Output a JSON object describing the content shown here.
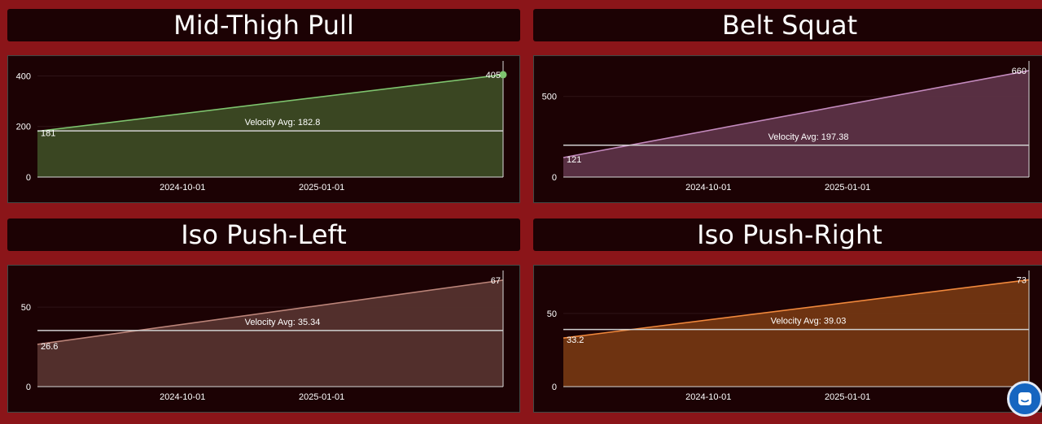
{
  "chart_data": [
    {
      "type": "area",
      "title": "Mid-Thigh Pull",
      "x": [
        "2024-06-27",
        "2025-05-01"
      ],
      "values": [
        181,
        405
      ],
      "point_labels": [
        "181",
        "405"
      ],
      "average": {
        "label": "Velocity Avg: 182.8",
        "value": 182.8
      },
      "xticks": [
        "2024-10-01",
        "2025-01-01"
      ],
      "yticks": [
        0,
        200,
        400
      ],
      "ylim": [
        0,
        440
      ],
      "colors": {
        "line": "#7ec46e",
        "fill": "#3c4a24"
      },
      "end_marker": true
    },
    {
      "type": "area",
      "title": "Belt Squat",
      "x": [
        "2024-06-27",
        "2025-05-01"
      ],
      "values": [
        121,
        660
      ],
      "point_labels": [
        "121",
        "660"
      ],
      "average": {
        "label": "Velocity Avg: 197.38",
        "value": 197.38
      },
      "xticks": [
        "2024-10-01",
        "2025-01-01"
      ],
      "yticks": [
        0,
        500
      ],
      "ylim": [
        0,
        690
      ],
      "colors": {
        "line": "#c38abd",
        "fill": "#5c3246"
      },
      "end_marker": false
    },
    {
      "type": "area",
      "title": "Iso Push-Left",
      "x": [
        "2024-06-27",
        "2025-05-01"
      ],
      "values": [
        26.6,
        67
      ],
      "point_labels": [
        "26.6",
        "67"
      ],
      "average": {
        "label": "Velocity Avg: 35.34",
        "value": 35.34
      },
      "xticks": [
        "2024-10-01",
        "2025-01-01"
      ],
      "yticks": [
        0,
        50
      ],
      "ylim": [
        0,
        70
      ],
      "colors": {
        "line": "#bb8479",
        "fill": "#55322e"
      },
      "end_marker": false
    },
    {
      "type": "area",
      "title": "Iso Push-Right",
      "x": [
        "2024-06-27",
        "2025-05-01"
      ],
      "values": [
        33.2,
        73
      ],
      "point_labels": [
        "33.2",
        "73"
      ],
      "average": {
        "label": "Velocity Avg: 39.03",
        "value": 39.03
      },
      "xticks": [
        "2024-10-01",
        "2025-01-01"
      ],
      "yticks": [
        0,
        50
      ],
      "ylim": [
        0,
        76
      ],
      "colors": {
        "line": "#f0883c",
        "fill": "#733612"
      },
      "end_marker": false
    }
  ],
  "chat": {
    "icon": "chat-bubble-icon"
  }
}
